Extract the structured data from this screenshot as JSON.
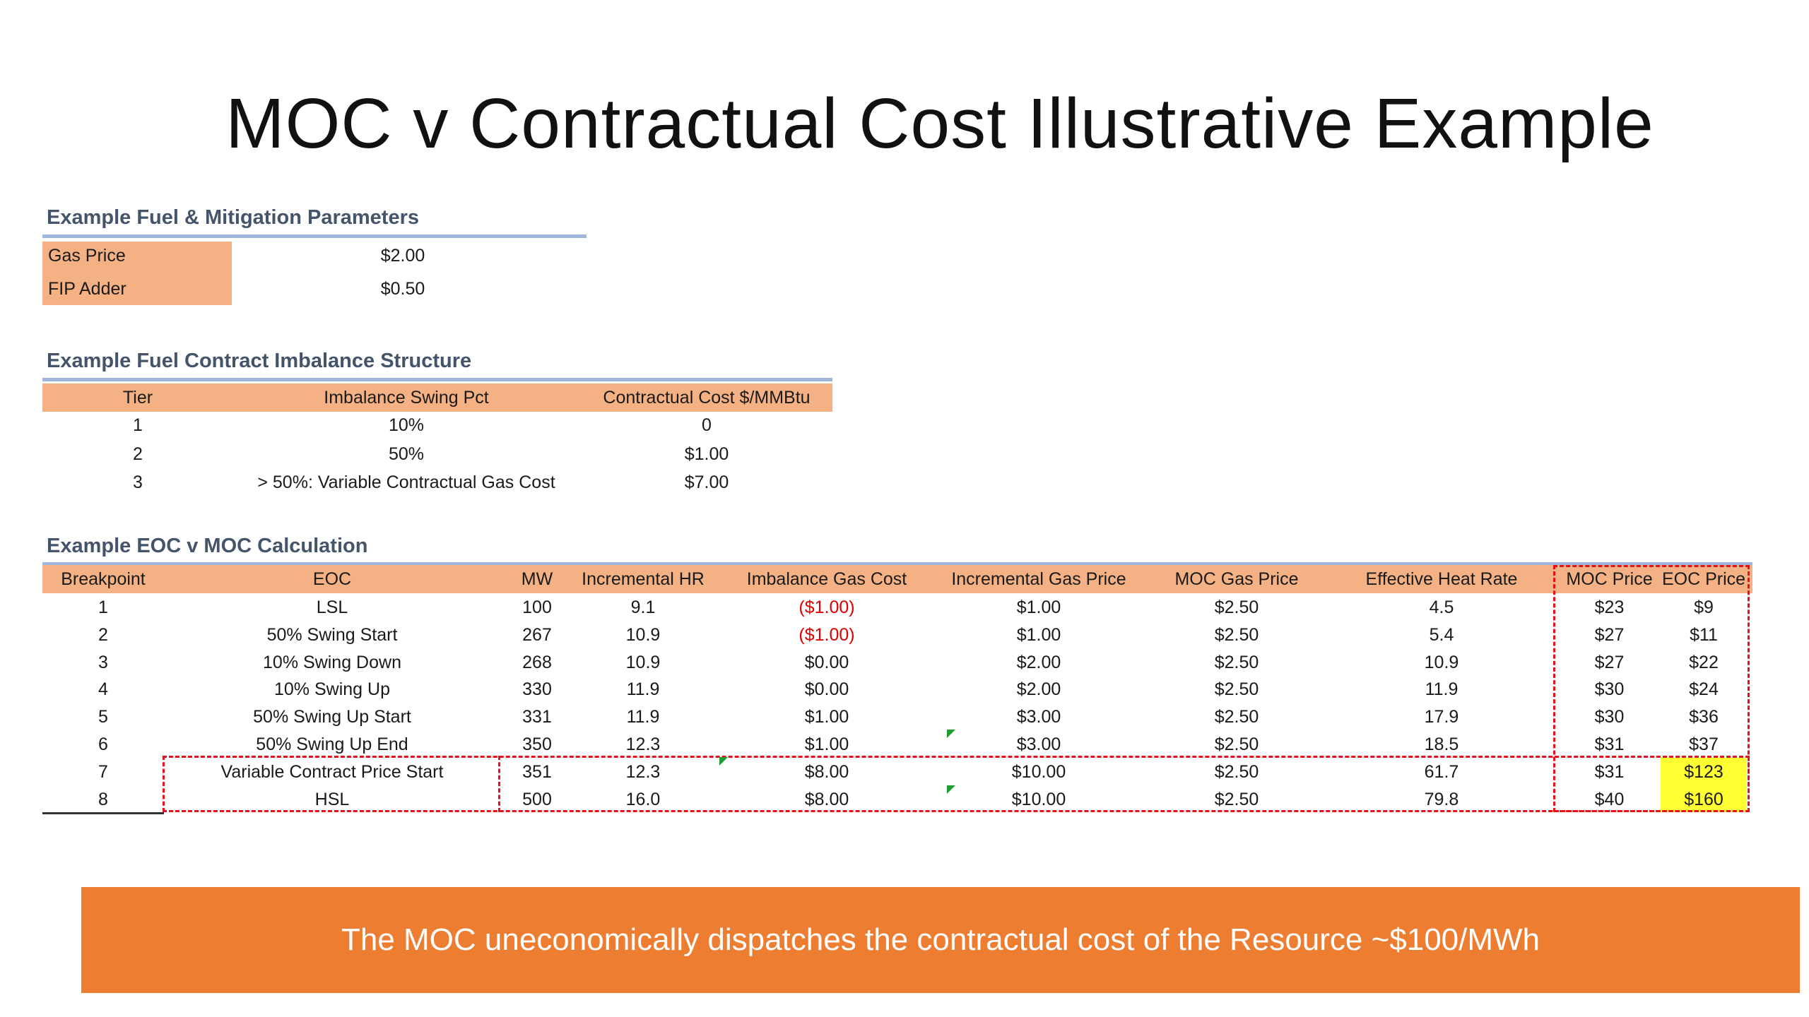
{
  "title": "MOC v Contractual Cost Illustrative Example",
  "fuel_params": {
    "heading": "Example Fuel & Mitigation Parameters",
    "rows": [
      {
        "label": "Gas Price",
        "value": "$2.00"
      },
      {
        "label": "FIP Adder",
        "value": "$0.50"
      }
    ]
  },
  "imbalance": {
    "heading": "Example Fuel Contract Imbalance Structure",
    "headers": [
      "Tier",
      "Imbalance Swing Pct",
      "Contractual Cost $/MMBtu"
    ],
    "rows": [
      [
        "1",
        "10%",
        "0"
      ],
      [
        "2",
        "50%",
        "$1.00"
      ],
      [
        "3",
        "> 50%: Variable Contractual Gas Cost",
        "$7.00"
      ]
    ]
  },
  "calc": {
    "heading": "Example EOC v MOC Calculation",
    "headers": [
      "Breakpoint",
      "EOC",
      "MW",
      "Incremental HR",
      "Imbalance Gas Cost",
      "Incremental Gas Price",
      "MOC Gas Price",
      "Effective Heat Rate",
      "MOC Price",
      "EOC Price"
    ],
    "rows": [
      [
        "1",
        "LSL",
        "100",
        "9.1",
        "($1.00)",
        "$1.00",
        "$2.50",
        "4.5",
        "$23",
        "$9"
      ],
      [
        "2",
        "50% Swing Start",
        "267",
        "10.9",
        "($1.00)",
        "$1.00",
        "$2.50",
        "5.4",
        "$27",
        "$11"
      ],
      [
        "3",
        "10% Swing Down",
        "268",
        "10.9",
        "$0.00",
        "$2.00",
        "$2.50",
        "10.9",
        "$27",
        "$22"
      ],
      [
        "4",
        "10% Swing Up",
        "330",
        "11.9",
        "$0.00",
        "$2.00",
        "$2.50",
        "11.9",
        "$30",
        "$24"
      ],
      [
        "5",
        "50% Swing Up Start",
        "331",
        "11.9",
        "$1.00",
        "$3.00",
        "$2.50",
        "17.9",
        "$30",
        "$36"
      ],
      [
        "6",
        "50% Swing Up End",
        "350",
        "12.3",
        "$1.00",
        "$3.00",
        "$2.50",
        "18.5",
        "$31",
        "$37"
      ],
      [
        "7",
        "Variable Contract Price Start",
        "351",
        "12.3",
        "$8.00",
        "$10.00",
        "$2.50",
        "61.7",
        "$31",
        "$123"
      ],
      [
        "8",
        "HSL",
        "500",
        "16.0",
        "$8.00",
        "$10.00",
        "$2.50",
        "79.8",
        "$40",
        "$160"
      ]
    ]
  },
  "banner_text": "The MOC uneconomically dispatches the contractual cost of the Resource ~$100/MWh",
  "colors": {
    "header_band": "#f4b183",
    "section_title": "#44546a",
    "rule": "#9fb6df",
    "negative": "#e00000",
    "highlight": "#ffff33",
    "dash": "#e8101a",
    "banner": "#ed7d31"
  }
}
